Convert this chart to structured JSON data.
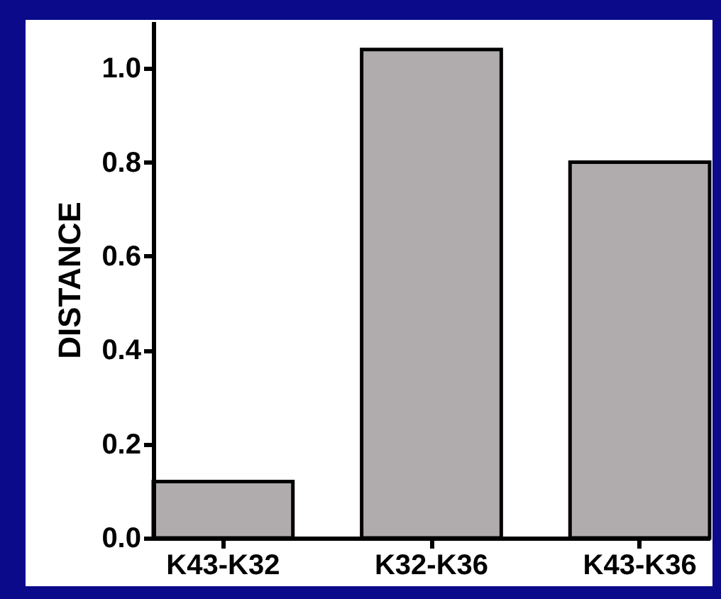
{
  "chart_data": {
    "type": "bar",
    "ylabel": "DISTANCE",
    "categories": [
      "K43-K32",
      "K32-K36",
      "K43-K36"
    ],
    "values": [
      0.12,
      1.04,
      0.8
    ],
    "color": "#b0acad",
    "ylim": [
      0,
      1.1
    ],
    "yticks": [
      {
        "value": 0,
        "label": "0.0"
      },
      0.2,
      0.4,
      0.6,
      0.8,
      {
        "value": 1,
        "label": "1.0"
      }
    ],
    "grid": false
  }
}
